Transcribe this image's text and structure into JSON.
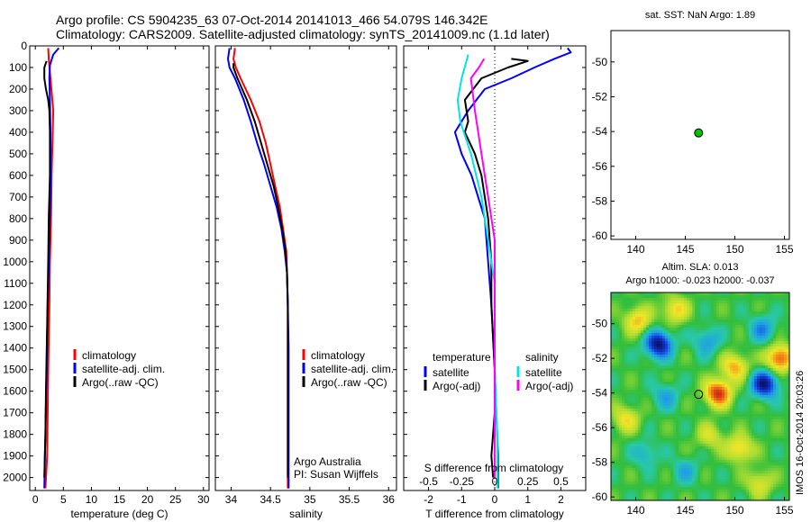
{
  "header": {
    "line1": "Argo profile: CS 5904235_63 07-Oct-2014 20141013_466 54.079S 146.342E",
    "line2": "Climatology: CARS2009. Satellite-adjusted climatology: synTS_20141009.nc (1.1d later)"
  },
  "colors": {
    "climatology": "#ff0000",
    "satellite": "#0000ff",
    "argo": "#000000",
    "sal_satellite": "#00e5e5",
    "sal_argo": "#ff00ff",
    "dot": "#00c000"
  },
  "side_text": {
    "argo_australia": "Argo Australia",
    "pi": "PI: Susan Wijffels",
    "imos_stamp": "IMOS 16-Oct-2014 20:03:26"
  },
  "map_sst": {
    "title": "sat. SST: NaN Argo: 1.89"
  },
  "map_sla": {
    "title1": "Altim. SLA: 0.013",
    "title2": "Argo h1000: -0.023 h2000: -0.037"
  },
  "chart_data": [
    {
      "type": "line",
      "panel": "temperature",
      "xlabel": "temperature (deg C)",
      "ylabel": "",
      "xlim": [
        -1,
        31
      ],
      "ylim": [
        2060,
        0
      ],
      "xticks": [
        0,
        5,
        10,
        15,
        20,
        25,
        30
      ],
      "yticks": [
        0,
        100,
        200,
        300,
        400,
        500,
        600,
        700,
        800,
        900,
        1000,
        1100,
        1200,
        1300,
        1400,
        1500,
        1600,
        1700,
        1800,
        1900,
        2000
      ],
      "legend": {
        "placement": "center-bottom",
        "entries": [
          "climatology",
          "satellite-adj. clim.",
          "Argo(..raw -QC)"
        ]
      },
      "series": [
        {
          "name": "climatology",
          "color": "#ff0000",
          "x": [
            2.3,
            2.4,
            2.7,
            3.2,
            3.1,
            2.9,
            2.8,
            2.6,
            2.5,
            2.3,
            2.2,
            2.1,
            1.8
          ],
          "y": [
            10,
            60,
            150,
            300,
            400,
            600,
            800,
            1000,
            1200,
            1500,
            1700,
            1900,
            2050
          ]
        },
        {
          "name": "satellite-adj. clim.",
          "color": "#0000ff",
          "x": [
            4.2,
            3.2,
            2.6,
            2.5,
            2.6,
            2.7,
            2.7,
            2.6,
            2.4,
            2.2,
            2.0,
            1.8,
            1.7,
            1.6
          ],
          "y": [
            10,
            40,
            90,
            150,
            250,
            400,
            600,
            800,
            1000,
            1200,
            1500,
            1800,
            1900,
            2050
          ]
        },
        {
          "name": "Argo(..raw -QC)",
          "color": "#000000",
          "x": [
            2.0,
            1.6,
            1.6,
            1.9,
            2.3,
            2.5,
            2.6,
            2.6,
            2.4,
            2.3,
            2.1,
            1.9,
            1.8,
            1.6
          ],
          "y": [
            70,
            100,
            150,
            200,
            250,
            300,
            400,
            600,
            800,
            1000,
            1300,
            1600,
            1800,
            2000
          ]
        }
      ]
    },
    {
      "type": "line",
      "panel": "salinity",
      "xlabel": "salinity",
      "ylabel": "",
      "xlim": [
        33.8,
        36.1
      ],
      "ylim": [
        2060,
        0
      ],
      "xticks": [
        34,
        34.5,
        35,
        35.5,
        36
      ],
      "legend": {
        "placement": "center-bottom",
        "entries": [
          "climatology",
          "satellite-adj. clim.",
          "Argo(..raw -QC)"
        ]
      },
      "series": [
        {
          "name": "climatology",
          "color": "#ff0000",
          "x": [
            34.05,
            34.03,
            34.06,
            34.12,
            34.25,
            34.36,
            34.44,
            34.5,
            34.56,
            34.62,
            34.66,
            34.7,
            34.71,
            34.72,
            34.72,
            34.72,
            34.72
          ],
          "y": [
            10,
            60,
            100,
            150,
            250,
            350,
            450,
            550,
            650,
            750,
            850,
            950,
            1050,
            1200,
            1400,
            1700,
            2050
          ]
        },
        {
          "name": "satellite-adj. clim.",
          "color": "#0000ff",
          "x": [
            33.98,
            33.96,
            33.98,
            34.05,
            34.16,
            34.25,
            34.33,
            34.42,
            34.5,
            34.58,
            34.64,
            34.68,
            34.71,
            34.72,
            34.73,
            34.73,
            34.73
          ],
          "y": [
            10,
            60,
            100,
            150,
            250,
            350,
            450,
            550,
            650,
            750,
            850,
            950,
            1050,
            1200,
            1400,
            1700,
            2050
          ]
        },
        {
          "name": "Argo(..raw -QC)",
          "color": "#000000",
          "x": [
            34.03,
            34.03,
            34.08,
            34.2,
            34.3,
            34.38,
            34.46,
            34.54,
            34.6,
            34.65,
            34.69,
            34.71,
            34.72,
            34.72,
            34.72,
            34.72
          ],
          "y": [
            80,
            100,
            150,
            250,
            350,
            450,
            550,
            650,
            750,
            850,
            950,
            1050,
            1200,
            1400,
            1700,
            2000
          ]
        }
      ]
    },
    {
      "type": "line",
      "panel": "difference",
      "xlabel": "T difference from climatology",
      "x2label": "S difference from climatology",
      "ylabel": "",
      "xlim": [
        -2.75,
        2.75
      ],
      "x2lim": [
        -0.6875,
        0.6875
      ],
      "ylim": [
        2060,
        0
      ],
      "xticks": [
        -2,
        -1,
        0,
        1,
        2
      ],
      "x2ticks": [
        -0.5,
        -0.25,
        0,
        0.25,
        0.5
      ],
      "x2ticklabels": [
        "-0.5",
        "-0.25",
        "0",
        "0.25",
        "0.5"
      ],
      "legend": {
        "placement": "center-bottom",
        "titles": [
          "temperature",
          "salinity"
        ],
        "entries": [
          "satellite",
          "Argo(-adj)",
          "satellite",
          "Argo(-adj)"
        ]
      },
      "series": [
        {
          "name": "satellite",
          "group": "temperature",
          "color": "#0000ff",
          "x": [
            2.2,
            2.3,
            1.8,
            1.2,
            0.5,
            -0.3,
            -0.8,
            -1.2,
            -1.0,
            -0.7,
            -0.5,
            -0.3,
            -0.2,
            -0.1,
            0.0,
            0.05,
            0.1,
            0.1
          ],
          "y": [
            10,
            30,
            60,
            100,
            150,
            200,
            300,
            400,
            500,
            600,
            700,
            800,
            1000,
            1200,
            1500,
            1700,
            1900,
            2050
          ]
        },
        {
          "name": "Argo(-adj)",
          "group": "temperature",
          "color": "#000000",
          "x": [
            0.5,
            1.0,
            0.4,
            -0.4,
            -0.9,
            -0.8,
            -0.9,
            -0.6,
            -0.4,
            -0.3,
            -0.2,
            -0.1,
            -0.1,
            0.0,
            0.0,
            -0.1,
            -0.05
          ],
          "y": [
            60,
            70,
            100,
            150,
            250,
            350,
            400,
            500,
            600,
            700,
            800,
            1000,
            1200,
            1500,
            1700,
            1900,
            2000
          ]
        },
        {
          "name": "satellite",
          "group": "salinity",
          "color": "#00e5e5",
          "x": [
            -0.2,
            -0.25,
            -0.28,
            -0.26,
            -0.18,
            -0.1,
            -0.05,
            0.0,
            0.0,
            0.02,
            0.02
          ],
          "y": [
            40,
            150,
            250,
            350,
            500,
            700,
            900,
            1100,
            1500,
            1800,
            2050
          ]
        },
        {
          "name": "Argo(-adj)",
          "group": "salinity",
          "color": "#ff00ff",
          "x": [
            -0.08,
            -0.12,
            -0.18,
            -0.15,
            -0.1,
            -0.05,
            0.0,
            0.0,
            0.0,
            0.0
          ],
          "y": [
            60,
            100,
            150,
            300,
            500,
            700,
            900,
            1200,
            1500,
            2000
          ]
        }
      ]
    },
    {
      "type": "scatter",
      "panel": "sst-map",
      "title": "sat. SST: NaN Argo: 1.89",
      "xlim": [
        137.5,
        155.5
      ],
      "ylim": [
        -60.2,
        -48.2
      ],
      "xticks": [
        140,
        145,
        150,
        155
      ],
      "yticks": [
        -60,
        -58,
        -56,
        -54,
        -52,
        -50
      ],
      "points": [
        {
          "x": 146.342,
          "y": -54.079,
          "color": "#00c000"
        }
      ]
    },
    {
      "type": "heatmap",
      "panel": "sla-map",
      "title": "Altim. SLA: 0.013",
      "subtitle": "Argo h1000: -0.023 h2000: -0.037",
      "xlim": [
        137.5,
        155.5
      ],
      "ylim": [
        -60.2,
        -48.2
      ],
      "xticks": [
        140,
        145,
        150,
        155
      ],
      "yticks": [
        -60,
        -58,
        -56,
        -54,
        -52,
        -50
      ],
      "points": [
        {
          "x": 146.342,
          "y": -54.079
        }
      ],
      "features": [
        {
          "x": 142.3,
          "y": -51.2,
          "value": -1.0
        },
        {
          "x": 153.0,
          "y": -53.5,
          "value": -0.95
        },
        {
          "x": 148.3,
          "y": -54.0,
          "value": 0.95
        },
        {
          "x": 150.0,
          "y": -52.5,
          "value": 0.6
        },
        {
          "x": 147.2,
          "y": -51.0,
          "value": -0.4
        },
        {
          "x": 140.2,
          "y": -49.8,
          "value": 0.55
        },
        {
          "x": 144.0,
          "y": -49.2,
          "value": 0.5
        },
        {
          "x": 152.8,
          "y": -50.3,
          "value": -0.45
        },
        {
          "x": 139.0,
          "y": -55.5,
          "value": 0.45
        },
        {
          "x": 143.0,
          "y": -54.2,
          "value": -0.35
        },
        {
          "x": 154.5,
          "y": -52.0,
          "value": 0.85
        },
        {
          "x": 150.5,
          "y": -57.2,
          "value": 0.55
        },
        {
          "x": 145.0,
          "y": -58.5,
          "value": -0.3
        },
        {
          "x": 152.5,
          "y": -59.2,
          "value": 0.4
        },
        {
          "x": 141.0,
          "y": -57.5,
          "value": -0.3
        },
        {
          "x": 147.5,
          "y": -56.5,
          "value": 0.35
        }
      ]
    }
  ]
}
